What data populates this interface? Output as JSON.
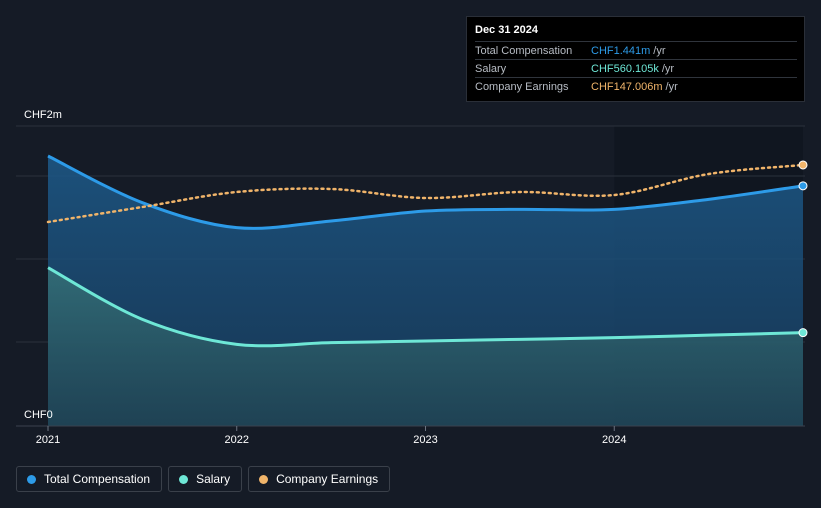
{
  "colors": {
    "total": "#2d9be8",
    "salary": "#6ee7d6",
    "earnings": "#f0b46a",
    "background": "#151b26",
    "highlight": "#101620"
  },
  "tooltip": {
    "date": "Dec 31 2024",
    "rows": [
      {
        "label": "Total Compensation",
        "value": "CHF1.441m",
        "unit": "/yr",
        "color": "#2d9be8"
      },
      {
        "label": "Salary",
        "value": "CHF560.105k",
        "unit": "/yr",
        "color": "#6ee7d6"
      },
      {
        "label": "Company Earnings",
        "value": "CHF147.006m",
        "unit": "/yr",
        "color": "#f0b46a"
      }
    ]
  },
  "legend": [
    {
      "label": "Total Compensation",
      "color": "#2d9be8"
    },
    {
      "label": "Salary",
      "color": "#6ee7d6"
    },
    {
      "label": "Company Earnings",
      "color": "#f0b46a"
    }
  ],
  "chart_data": {
    "type": "area",
    "title": "",
    "y_axis": {
      "top_label": "CHF2m",
      "bottom_label": "CHF0",
      "ylim": [
        0,
        1.8
      ],
      "unit": "CHF m"
    },
    "x_ticks": [
      {
        "label": "2021",
        "x": 2021.0
      },
      {
        "label": "2022",
        "x": 2022.0
      },
      {
        "label": "2023",
        "x": 2023.0
      },
      {
        "label": "2024",
        "x": 2024.0
      }
    ],
    "xlim": [
      2021.0,
      2025.0
    ],
    "highlight_from": 2024.0,
    "grid": true,
    "legend_position": "bottom-left",
    "series": [
      {
        "name": "Total Compensation",
        "key": "total",
        "x": [
          2021.0,
          2021.5,
          2022.0,
          2022.5,
          2023.0,
          2023.5,
          2024.0,
          2024.5,
          2025.0
        ],
        "values": [
          1.62,
          1.34,
          1.19,
          1.23,
          1.29,
          1.3,
          1.3,
          1.36,
          1.441
        ]
      },
      {
        "name": "Salary",
        "key": "salary",
        "x": [
          2021.0,
          2021.5,
          2022.0,
          2022.5,
          2023.0,
          2023.5,
          2024.0,
          2024.5,
          2025.0
        ],
        "values": [
          0.95,
          0.64,
          0.49,
          0.5,
          0.51,
          0.52,
          0.53,
          0.545,
          0.560105
        ]
      },
      {
        "name": "Company Earnings",
        "key": "earnings",
        "scale": "secondary",
        "x": [
          2021.0,
          2021.5,
          2022.0,
          2022.5,
          2023.0,
          2023.5,
          2024.0,
          2024.5,
          2025.0
        ],
        "values": [
          128,
          133,
          138,
          139,
          136,
          138,
          137,
          144,
          147.006
        ],
        "ylim": [
          60,
          160
        ]
      }
    ]
  }
}
